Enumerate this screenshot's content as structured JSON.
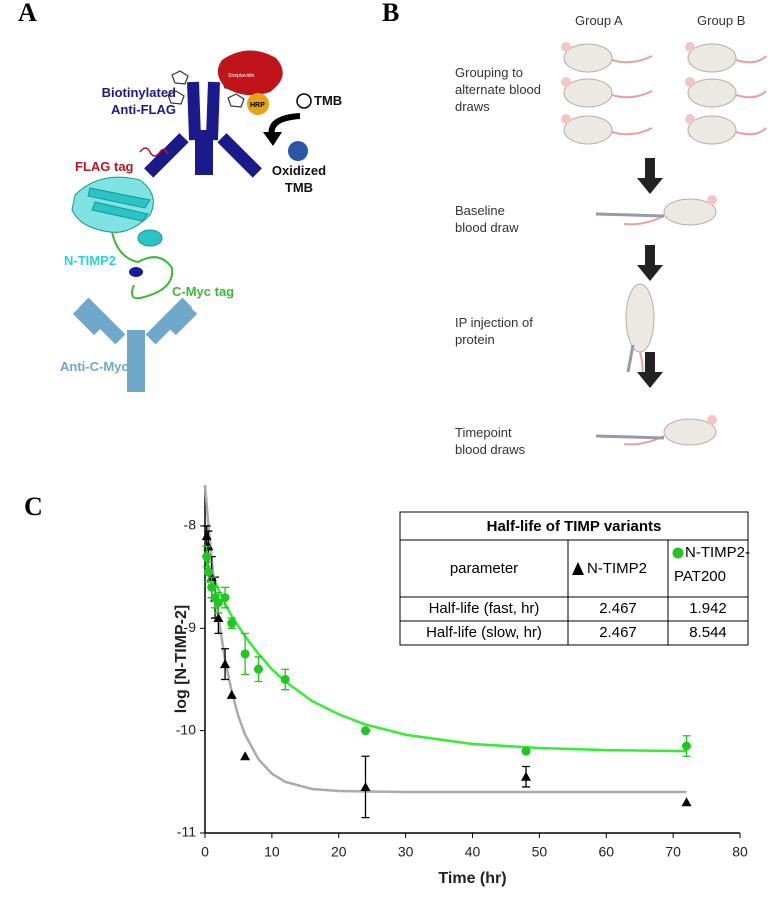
{
  "panel_labels": {
    "a": "A",
    "b": "B",
    "c": "C"
  },
  "diagram_a": {
    "streptavidin": "Streptavidin",
    "hrp": "HRP",
    "tmb": "TMB",
    "antibody": "Biotinylated Anti-FLAG",
    "oxidized": "Oxidized TMB",
    "flag_tag": "FLAG tag",
    "protein": "N-TIMP2",
    "myc_tag": "C-Myc tag",
    "anti_myc": "Anti-C-Myc"
  },
  "diagram_b": {
    "group_a": "Group A",
    "group_b": "Group B",
    "steps": [
      "Grouping to alternate blood draws",
      "Baseline blood draw",
      "IP injection of protein",
      "Timepoint blood draws"
    ]
  },
  "chart_data": {
    "type": "scatter",
    "xlabel": "Time (hr)",
    "ylabel": "log [N-TIMP-2]",
    "xlim": [
      0,
      80
    ],
    "xticks": [
      0,
      10,
      20,
      30,
      40,
      50,
      60,
      70,
      80
    ],
    "ylim": [
      -11,
      -7.6
    ],
    "yticks": [
      -11,
      -10,
      -9,
      -8
    ],
    "series": [
      {
        "name": "N-TIMP2",
        "color": "#000000",
        "marker": "triangle",
        "x": [
          0.25,
          0.5,
          1,
          1.5,
          2,
          3,
          4,
          6,
          24,
          48,
          72
        ],
        "values": [
          -8.1,
          -8.2,
          -8.5,
          -8.7,
          -8.9,
          -9.35,
          -9.65,
          -10.25,
          -10.55,
          -10.45,
          -10.7
        ],
        "errors": [
          0.1,
          0.15,
          0.2,
          0.2,
          0.15,
          0.15,
          null,
          null,
          0.3,
          0.1,
          null
        ]
      },
      {
        "name": "N-TIMP2-PAT200",
        "color": "#22c522",
        "marker": "circle",
        "x": [
          0.25,
          0.5,
          1,
          1.5,
          2,
          3,
          4,
          6,
          8,
          12,
          24,
          48,
          72
        ],
        "values": [
          -8.3,
          -8.45,
          -8.6,
          -8.7,
          -8.75,
          -8.7,
          -8.95,
          -9.25,
          -9.4,
          -9.5,
          -10.0,
          -10.2,
          -10.15
        ],
        "errors": [
          0.1,
          0.1,
          0.1,
          0.1,
          0.1,
          0.1,
          0.05,
          0.2,
          0.12,
          0.1,
          null,
          null,
          0.1
        ]
      }
    ],
    "fits": [
      {
        "color": "#aaaaaa",
        "x": [
          0,
          0.5,
          1,
          1.5,
          2,
          3,
          4,
          5,
          6,
          8,
          10,
          12,
          16,
          20,
          30,
          50,
          72
        ],
        "values": [
          -7.6,
          -7.99,
          -8.33,
          -8.63,
          -8.89,
          -9.31,
          -9.62,
          -9.86,
          -10.04,
          -10.28,
          -10.42,
          -10.5,
          -10.57,
          -10.59,
          -10.6,
          -10.6,
          -10.6
        ]
      },
      {
        "color": "#33ee33",
        "x": [
          0,
          1,
          2,
          3,
          4,
          6,
          8,
          10,
          12,
          16,
          20,
          24,
          30,
          40,
          50,
          60,
          72
        ],
        "values": [
          -8.3,
          -8.47,
          -8.62,
          -8.76,
          -8.88,
          -9.08,
          -9.25,
          -9.4,
          -9.52,
          -9.71,
          -9.84,
          -9.94,
          -10.04,
          -10.13,
          -10.17,
          -10.19,
          -10.2
        ]
      }
    ],
    "table": {
      "title": "Half-life of TIMP variants",
      "parameter": "parameter",
      "rows": [
        [
          "Half-life (fast, hr)",
          2.467,
          1.942
        ],
        [
          "Half-life (slow, hr)",
          2.467,
          8.544
        ]
      ]
    }
  }
}
